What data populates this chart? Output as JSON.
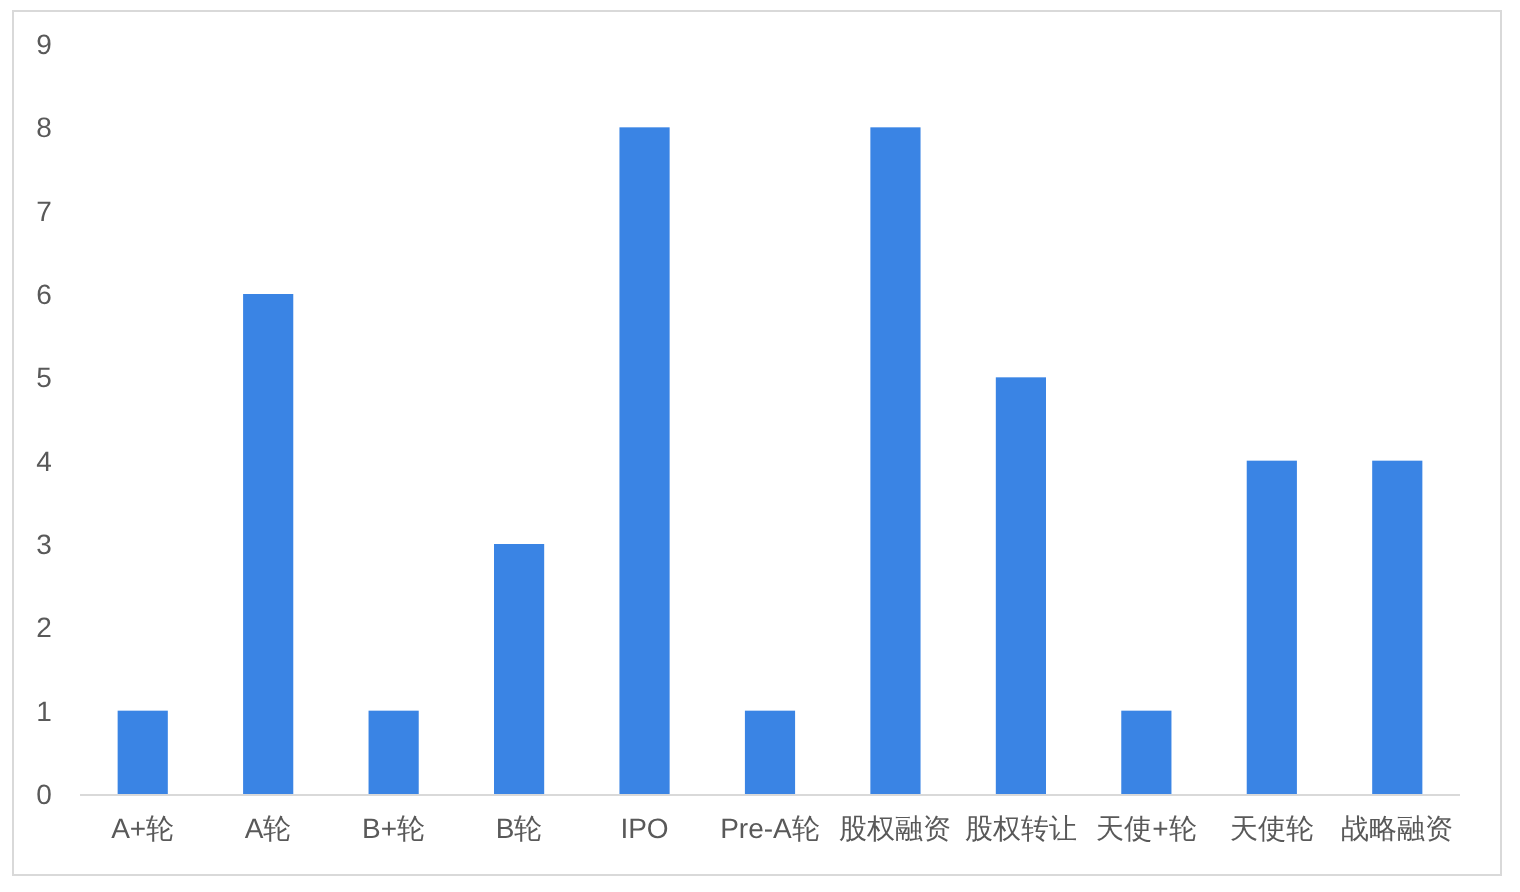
{
  "chart_data": {
    "type": "bar",
    "categories": [
      "A+轮",
      "A轮",
      "B+轮",
      "B轮",
      "IPO",
      "Pre-A轮",
      "股权融资",
      "股权转让",
      "天使+轮",
      "天使轮",
      "战略融资"
    ],
    "values": [
      1,
      6,
      1,
      3,
      8,
      1,
      8,
      5,
      1,
      4,
      4
    ],
    "color": "#3a84e4",
    "ylim": [
      0,
      9
    ],
    "yticks": [
      0,
      1,
      2,
      3,
      4,
      5,
      6,
      7,
      8,
      9
    ]
  }
}
